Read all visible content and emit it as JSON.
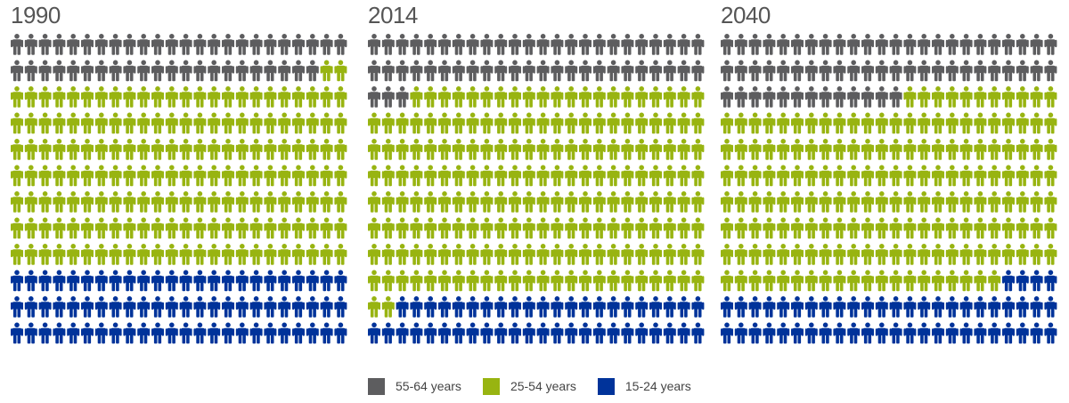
{
  "chart_data": {
    "type": "pictogram",
    "rows": 12,
    "columns": 24,
    "icon": "person-icon",
    "fill_order": [
      "55-64 years",
      "25-54 years",
      "15-24 years"
    ],
    "colors": {
      "55-64 years": "#5d5d5f",
      "25-54 years": "#98b411",
      "15-24 years": "#00339a"
    },
    "legend": [
      {
        "label": "55-64 years",
        "color": "#5d5d5f"
      },
      {
        "label": "25-54 years",
        "color": "#98b411"
      },
      {
        "label": "15-24 years",
        "color": "#00339a"
      }
    ],
    "panels": [
      {
        "title": "1990",
        "counts": {
          "55-64 years": 46,
          "25-54 years": 170,
          "15-24 years": 72
        }
      },
      {
        "title": "2014",
        "counts": {
          "55-64 years": 51,
          "25-54 years": 191,
          "15-24 years": 46
        }
      },
      {
        "title": "2040",
        "counts": {
          "55-64 years": 61,
          "25-54 years": 175,
          "15-24 years": 52
        }
      }
    ]
  }
}
